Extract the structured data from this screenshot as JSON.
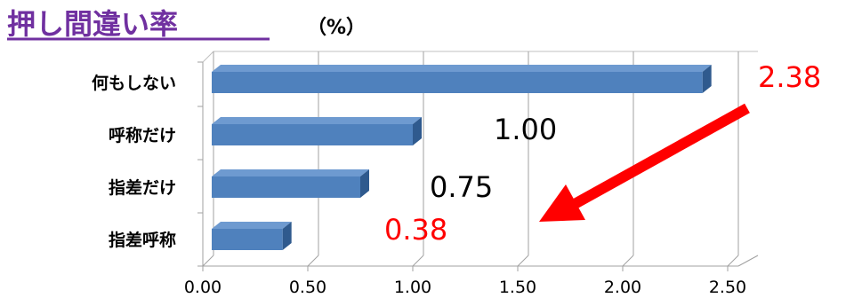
{
  "title": "押し間違い率",
  "unit": "（%）",
  "colors": {
    "title": "#7030A0",
    "bar_front": "#4F81BD",
    "bar_top": "#6E9AD0",
    "bar_side": "#2F5A8E",
    "highlight": "#FF0000",
    "normal_label": "#000000",
    "arrow": "#FF0000"
  },
  "chart_data": {
    "type": "bar",
    "orientation": "horizontal",
    "categories": [
      "何もしない",
      "呼称だけ",
      "指差だけ",
      "指差呼称"
    ],
    "values": [
      2.38,
      1.0,
      0.75,
      0.38
    ],
    "value_labels": [
      "2.38",
      "1.00",
      "0.75",
      "0.38"
    ],
    "label_colors": [
      "#FF0000",
      "#000000",
      "#000000",
      "#FF0000"
    ],
    "xlim": [
      0,
      2.5
    ],
    "xticks": [
      "0.00",
      "0.50",
      "1.00",
      "1.50",
      "2.00",
      "2.50"
    ],
    "grid": true,
    "annotation": "arrow from highest value (2.38) pointing down-left toward lowest value (0.38)"
  }
}
